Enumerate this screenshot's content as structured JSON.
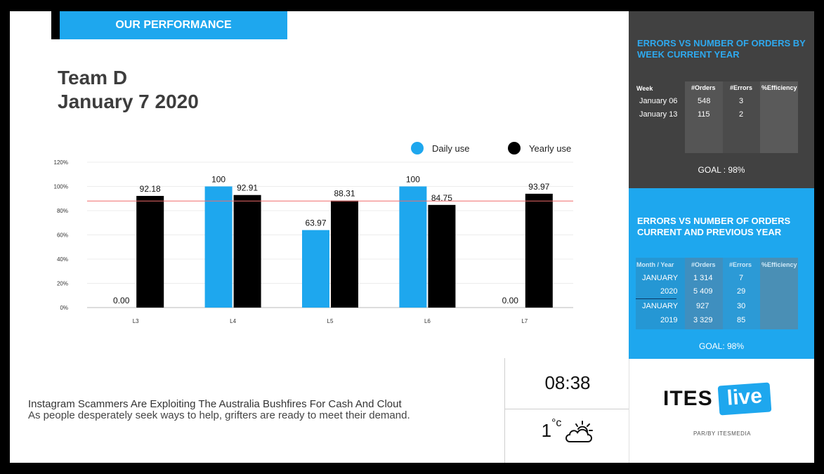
{
  "header": {
    "banner": "OUR PERFORMANCE"
  },
  "team": {
    "name": "Team D",
    "date": "January 7 2020"
  },
  "legend": {
    "daily": "Daily use",
    "yearly": "Yearly use"
  },
  "colors": {
    "accent": "#1ea7ee",
    "daily": "#1ea7ee",
    "yearly": "#000000",
    "goal_line": "#f06b6b",
    "dark_panel": "#414141"
  },
  "chart_data": {
    "type": "bar",
    "categories": [
      "L3",
      "L4",
      "L5",
      "L6",
      "L7"
    ],
    "series": [
      {
        "name": "Daily use",
        "values": [
          0.0,
          100,
          63.97,
          100,
          0.0
        ],
        "labels": [
          "0.00",
          "100",
          "63.97",
          "100",
          "0.00"
        ]
      },
      {
        "name": "Yearly use",
        "values": [
          92.18,
          92.91,
          88.31,
          84.75,
          93.97
        ],
        "labels": [
          "92.18",
          "92.91",
          "88.31",
          "84.75",
          "93.97"
        ]
      }
    ],
    "yticks": [
      "0%",
      "20%",
      "40%",
      "60%",
      "80%",
      "100%",
      "120%"
    ],
    "ylim": [
      0,
      120
    ],
    "reference_line": 88,
    "grid": true,
    "legend_position": "top-right"
  },
  "news": {
    "headline": "Instagram Scammers Are Exploiting The Australia Bushfires For Cash And Clout",
    "subline": "As people desperately seek ways to help, grifters are ready to meet their demand."
  },
  "clock": {
    "time": "08:38"
  },
  "weather": {
    "temp": "1",
    "unit": "°c",
    "icon": "partly-cloudy-icon"
  },
  "weekly_panel": {
    "title": "ERRORS VS NUMBER OF ORDERS BY WEEK CURRENT YEAR",
    "headers": [
      "Week",
      "#Orders",
      "#Errors",
      "%Efficiency"
    ],
    "rows": [
      [
        "January 06",
        "548",
        "3"
      ],
      [
        "January 13",
        "115",
        "2"
      ]
    ],
    "goal": "GOAL : 98%"
  },
  "yearly_panel": {
    "title": "ERRORS VS NUMBER OF ORDERS CURRENT AND PREVIOUS YEAR",
    "headers": [
      "Month / Year",
      "#Orders",
      "#Errors",
      "%Efficiency"
    ],
    "rows": [
      [
        "JANUARY",
        "1 314",
        "7"
      ],
      [
        "2020",
        "5 409",
        "29"
      ],
      [
        "JANUARY",
        "927",
        "30"
      ],
      [
        "2019",
        "3 329",
        "85"
      ]
    ],
    "goal": "GOAL: 98%"
  },
  "brand": {
    "ites": "ITES",
    "live": "live",
    "byline": "PAR/BY ITESMEDIA"
  }
}
